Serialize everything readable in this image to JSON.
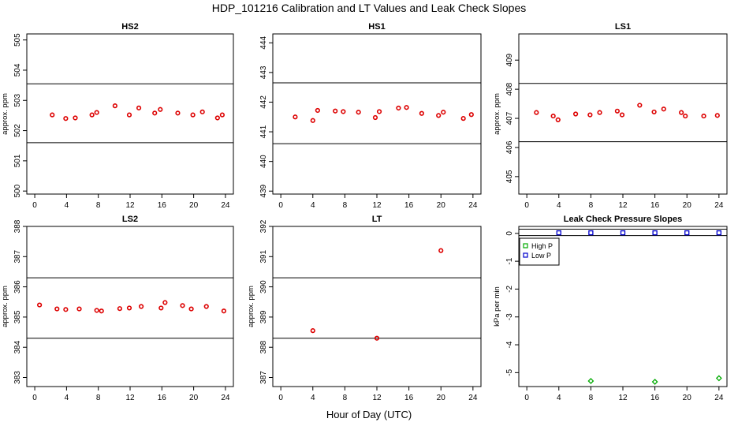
{
  "figure": {
    "title": "HDP_101216  Calibration and LT Values and Leak Check Slopes",
    "xlabel": "Hour of Day (UTC)"
  },
  "colors": {
    "points": "#dd0000",
    "high_p": "#00aa00",
    "low_p": "#0000cc",
    "axis": "#000000"
  },
  "chart_data": [
    {
      "type": "scatter",
      "title": "HS2",
      "ylabel": "approx. ppm",
      "xlim": [
        -1,
        25
      ],
      "ylim": [
        499.9,
        505.2
      ],
      "xticks": [
        0,
        4,
        8,
        12,
        16,
        20,
        24
      ],
      "yticks": [
        500,
        501,
        502,
        503,
        504,
        505
      ],
      "hlines": [
        503.55,
        501.6
      ],
      "x": [
        2.2,
        3.9,
        5.1,
        7.2,
        7.8,
        10.1,
        11.9,
        13.1,
        15.1,
        15.8,
        18.0,
        19.9,
        21.1,
        23.0,
        23.6
      ],
      "y": [
        502.52,
        502.4,
        502.42,
        502.52,
        502.6,
        502.82,
        502.52,
        502.75,
        502.58,
        502.7,
        502.58,
        502.52,
        502.62,
        502.42,
        502.52
      ]
    },
    {
      "type": "scatter",
      "title": "HS1",
      "ylabel": "",
      "xlim": [
        -1,
        25
      ],
      "ylim": [
        438.9,
        444.3
      ],
      "xticks": [
        0,
        4,
        8,
        12,
        16,
        20,
        24
      ],
      "yticks": [
        439,
        440,
        441,
        442,
        443,
        444
      ],
      "hlines": [
        442.65,
        440.6
      ],
      "x": [
        1.8,
        4.0,
        4.6,
        6.8,
        7.8,
        9.7,
        11.8,
        12.3,
        14.7,
        15.7,
        17.6,
        19.7,
        20.3,
        22.8,
        23.8
      ],
      "y": [
        441.5,
        441.38,
        441.72,
        441.7,
        441.68,
        441.66,
        441.48,
        441.68,
        441.8,
        441.82,
        441.62,
        441.55,
        441.66,
        441.45,
        441.58
      ]
    },
    {
      "type": "scatter",
      "title": "LS1",
      "ylabel": "approx. ppm",
      "xlim": [
        -1,
        25
      ],
      "ylim": [
        404.4,
        409.9
      ],
      "xticks": [
        0,
        4,
        8,
        12,
        16,
        20,
        24
      ],
      "yticks": [
        405,
        406,
        407,
        408,
        409
      ],
      "hlines": [
        408.2,
        406.2
      ],
      "x": [
        1.2,
        3.3,
        3.9,
        6.1,
        7.9,
        9.1,
        11.3,
        11.9,
        14.1,
        15.9,
        17.1,
        19.3,
        19.8,
        22.1,
        23.8
      ],
      "y": [
        407.2,
        407.08,
        406.95,
        407.15,
        407.12,
        407.2,
        407.25,
        407.12,
        407.45,
        407.22,
        407.32,
        407.2,
        407.08,
        407.08,
        407.1
      ]
    },
    {
      "type": "scatter",
      "title": "LS2",
      "ylabel": "approx. ppm",
      "xlim": [
        -1,
        25
      ],
      "ylim": [
        382.7,
        388.0
      ],
      "xticks": [
        0,
        4,
        8,
        12,
        16,
        20,
        24
      ],
      "yticks": [
        383,
        384,
        385,
        386,
        387,
        388
      ],
      "hlines": [
        386.3,
        384.3
      ],
      "x": [
        0.6,
        2.8,
        3.9,
        5.6,
        7.8,
        8.4,
        10.7,
        11.9,
        13.4,
        15.9,
        16.4,
        18.6,
        19.7,
        21.6,
        23.8
      ],
      "y": [
        385.4,
        385.27,
        385.25,
        385.27,
        385.22,
        385.2,
        385.28,
        385.3,
        385.35,
        385.3,
        385.48,
        385.38,
        385.27,
        385.35,
        385.2
      ]
    },
    {
      "type": "scatter",
      "title": "LT",
      "ylabel": "approx. ppm",
      "xlim": [
        -1,
        25
      ],
      "ylim": [
        386.7,
        392.0
      ],
      "xticks": [
        0,
        4,
        8,
        12,
        16,
        20,
        24
      ],
      "yticks": [
        387,
        388,
        389,
        390,
        391,
        392
      ],
      "hlines": [
        390.3,
        388.3
      ],
      "x": [
        4.0,
        12.0,
        20.0
      ],
      "y": [
        388.55,
        388.3,
        391.2
      ]
    },
    {
      "type": "scatter",
      "title": "Leak Check Pressure Slopes",
      "ylabel": "kPa per min",
      "xlim": [
        -1,
        25
      ],
      "ylim": [
        -5.5,
        0.25
      ],
      "xticks": [
        0,
        4,
        8,
        12,
        16,
        20,
        24
      ],
      "yticks": [
        0,
        -1,
        -2,
        -3,
        -4,
        -5
      ],
      "hlines": [
        0.15,
        -0.08
      ],
      "legend": {
        "position": "top-left",
        "entries": [
          "High P",
          "Low P"
        ]
      },
      "series": [
        {
          "name": "High P",
          "x": [
            8,
            16,
            24
          ],
          "y": [
            -5.3,
            -5.33,
            -5.2
          ]
        },
        {
          "name": "Low P",
          "x": [
            4,
            8,
            12,
            16,
            20,
            24
          ],
          "y": [
            0.02,
            0.02,
            0.02,
            0.02,
            0.02,
            0.02
          ]
        }
      ]
    }
  ]
}
